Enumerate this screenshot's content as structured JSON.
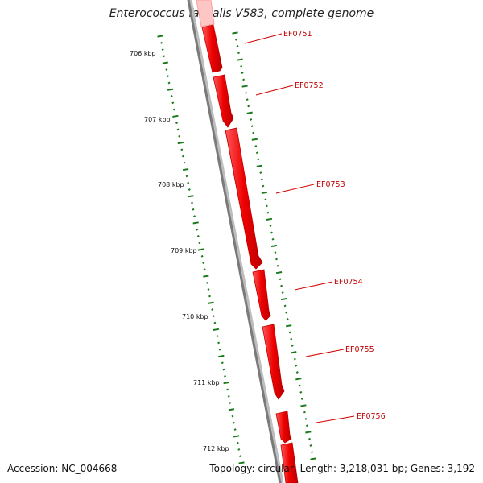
{
  "title": "Enterococcus faecalis V583, complete genome",
  "footer": {
    "accession": "Accession: NC_004668",
    "info": "Topology: circular; Length: 3,218,031 bp; Genes: 3,192"
  },
  "colors": {
    "backbone": "#808080",
    "gene": "#ee0000",
    "gene_highlight": "#ff6a6a",
    "ticks": "#1a7a1a",
    "label": "#c00000"
  },
  "kbp_labels": [
    "706 kbp",
    "707 kbp",
    "708 kbp",
    "709 kbp",
    "710 kbp",
    "711 kbp",
    "712 kbp"
  ],
  "genes": [
    {
      "name": "EF0751"
    },
    {
      "name": "EF0752"
    },
    {
      "name": "EF0753"
    },
    {
      "name": "EF0754"
    },
    {
      "name": "EF0755"
    },
    {
      "name": "EF0756"
    }
  ]
}
